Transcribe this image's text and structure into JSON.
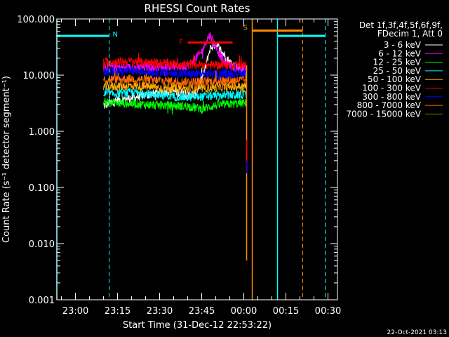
{
  "chart_data": {
    "type": "line",
    "title": "RHESSI Count Rates",
    "xlabel": "Start Time (31-Dec-12 22:53:22)",
    "ylabel": "Count Rate (s⁻¹ detector segment⁻¹)",
    "y_scale": "log",
    "xlim": [
      "22:53:22",
      "00:33:22"
    ],
    "ylim": [
      0.001,
      100
    ],
    "x_tick_labels": [
      "23:00",
      "23:15",
      "23:30",
      "23:45",
      "00:00",
      "00:15",
      "00:30"
    ],
    "y_tick_labels": [
      "0.001",
      "0.010",
      "0.100",
      "1.000",
      "10.000",
      "100.000"
    ],
    "legend_header": [
      "Det 1f,3f,4f,5f,6f,9f,",
      "FDecim 1, Att 0"
    ],
    "legend_position": "right",
    "series": [
      {
        "name": "3 - 6 keV",
        "color": "#ffffff",
        "x_start": "23:10",
        "x_end": "00:01",
        "points": [
          [
            "23:10",
            2.8
          ],
          [
            "23:15",
            3.6
          ],
          [
            "23:20",
            3.9
          ],
          [
            "23:25",
            4.4
          ],
          [
            "23:30",
            4.9
          ],
          [
            "23:35",
            5.2
          ],
          [
            "23:40",
            4.4
          ],
          [
            "23:43",
            4.6
          ],
          [
            "23:46",
            12
          ],
          [
            "23:48",
            30
          ],
          [
            "23:50",
            36
          ],
          [
            "23:52",
            27
          ],
          [
            "23:55",
            17
          ],
          [
            "23:58",
            14
          ],
          [
            "00:01",
            12
          ]
        ]
      },
      {
        "name": "6 - 12 keV",
        "color": "#ff00ff",
        "x_start": "23:10",
        "x_end": "00:01",
        "points": [
          [
            "23:10",
            14
          ],
          [
            "23:20",
            13.5
          ],
          [
            "23:30",
            14
          ],
          [
            "23:40",
            14.5
          ],
          [
            "23:45",
            26
          ],
          [
            "23:47",
            45
          ],
          [
            "23:48",
            52
          ],
          [
            "23:50",
            32
          ],
          [
            "23:53",
            17
          ],
          [
            "23:56",
            14
          ],
          [
            "00:01",
            13
          ]
        ]
      },
      {
        "name": "12 - 25 keV",
        "color": "#00ff00",
        "x_start": "23:10",
        "x_end": "00:01",
        "points": [
          [
            "23:10",
            3.3
          ],
          [
            "23:20",
            3.1
          ],
          [
            "23:30",
            2.9
          ],
          [
            "23:40",
            2.8
          ],
          [
            "23:45",
            2.5
          ],
          [
            "23:50",
            2.9
          ],
          [
            "00:01",
            3.2
          ]
        ]
      },
      {
        "name": "25 - 50 keV",
        "color": "#00ffff",
        "x_start": "23:10",
        "x_end": "00:01",
        "points": [
          [
            "23:10",
            4.5
          ],
          [
            "23:20",
            4.9
          ],
          [
            "23:30",
            4.4
          ],
          [
            "23:40",
            4.0
          ],
          [
            "23:50",
            4.3
          ],
          [
            "00:01",
            4.5
          ]
        ]
      },
      {
        "name": "50 - 100 keV",
        "color": "#ffaa00",
        "x_start": "23:10",
        "x_end": "00:01",
        "points": [
          [
            "23:10",
            6.2
          ],
          [
            "23:20",
            6.5
          ],
          [
            "23:30",
            6.0
          ],
          [
            "23:40",
            5.7
          ],
          [
            "23:50",
            6.0
          ],
          [
            "00:01",
            6.3
          ]
        ]
      },
      {
        "name": "100 - 300 keV",
        "color": "#ff0000",
        "x_start": "23:10",
        "x_end": "00:01",
        "points": [
          [
            "23:10",
            17
          ],
          [
            "23:20",
            17.5
          ],
          [
            "23:30",
            16.5
          ],
          [
            "23:40",
            15.5
          ],
          [
            "23:50",
            15
          ],
          [
            "00:01",
            15
          ]
        ]
      },
      {
        "name": "300 - 800 keV",
        "color": "#0000ff",
        "x_start": "23:10",
        "x_end": "00:01",
        "points": [
          [
            "23:10",
            11.5
          ],
          [
            "23:20",
            12
          ],
          [
            "23:30",
            11
          ],
          [
            "23:40",
            10.5
          ],
          [
            "23:50",
            10.5
          ],
          [
            "00:01",
            11
          ]
        ]
      },
      {
        "name": "800 - 7000 keV",
        "color": "#ff6a00",
        "x_start": "23:10",
        "x_end": "00:01",
        "points": [
          [
            "23:10",
            8.3
          ],
          [
            "23:20",
            8.6
          ],
          [
            "23:30",
            8.0
          ],
          [
            "23:40",
            7.6
          ],
          [
            "23:50",
            7.8
          ],
          [
            "00:01",
            8.2
          ]
        ]
      },
      {
        "name": "7000 - 15000 keV",
        "color": "#808000",
        "x_start": "23:10",
        "x_end": "00:01",
        "points": []
      }
    ],
    "annotations": {
      "night_label": "N",
      "flare_label": "F",
      "saa_label": "S",
      "night_intervals": [
        [
          "22:53:22",
          "23:12"
        ],
        [
          "00:12",
          "00:29"
        ]
      ],
      "night_level": 50,
      "flare_interval": [
        "23:40",
        "23:56"
      ],
      "flare_level": 38,
      "saa_interval": [
        "00:03",
        "00:21"
      ],
      "saa_level": 62,
      "solid_vlines": [
        {
          "time": "22:53:22",
          "color": "#00ffff"
        },
        {
          "time": "00:12",
          "color": "#00ffff"
        },
        {
          "time": "00:03",
          "color": "#ff8c00"
        }
      ],
      "dashed_vlines": [
        {
          "time": "23:12",
          "color": "#00ffff"
        },
        {
          "time": "00:29",
          "color": "#00ffff"
        },
        {
          "time": "00:21",
          "color": "#ff8c00"
        }
      ],
      "drop_lines": [
        {
          "time": "00:01",
          "color": "#ff8c00",
          "y_from": 0.005,
          "y_to": 15
        },
        {
          "time": "00:01",
          "color": "#0000ff",
          "y_from": 0.18,
          "y_to": 0.35
        },
        {
          "time": "00:01",
          "color": "#ff0000",
          "y_from": 0.3,
          "y_to": 0.7
        }
      ]
    },
    "timestamp": "22-Oct-2021 03:13"
  }
}
